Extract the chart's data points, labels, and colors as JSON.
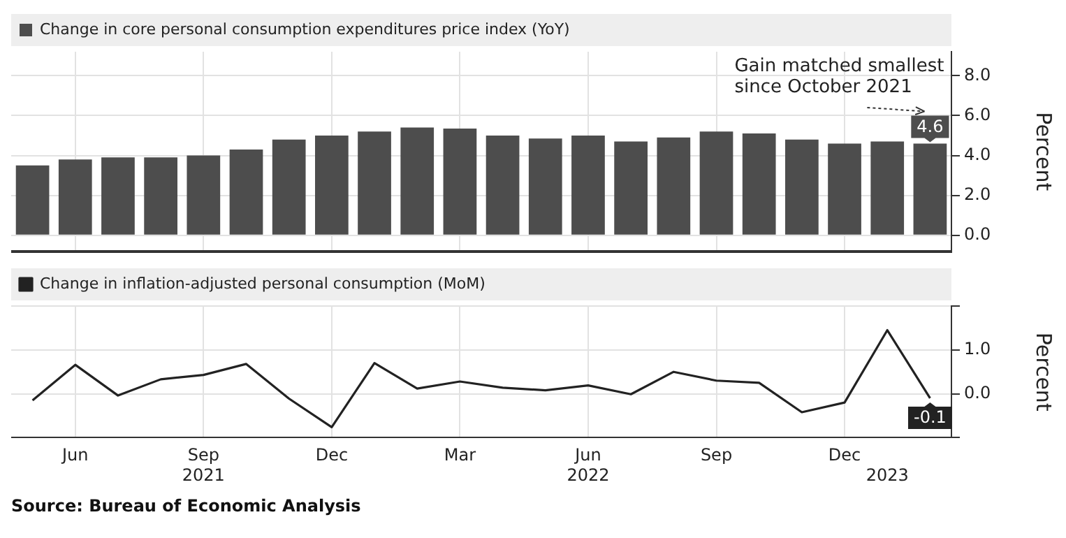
{
  "chart_data": [
    {
      "type": "bar",
      "categories": [
        null,
        null,
        null,
        null,
        null,
        null,
        null,
        null,
        null,
        null,
        null,
        null,
        null,
        null,
        null,
        null,
        null,
        null,
        null,
        null,
        null,
        null
      ],
      "series": [
        {
          "name": "Change in core personal consumption expenditures price index (YoY)",
          "color": "#4d4d4d",
          "values": [
            3.5,
            3.8,
            3.9,
            3.9,
            4.0,
            4.3,
            4.8,
            5.0,
            5.2,
            5.4,
            5.35,
            5.0,
            4.85,
            5.0,
            4.7,
            4.9,
            5.2,
            5.1,
            4.8,
            4.6,
            4.7,
            4.6
          ],
          "value_labels": [
            null,
            null,
            null,
            null,
            null,
            null,
            null,
            null,
            null,
            null,
            null,
            null,
            null,
            null,
            null,
            null,
            null,
            null,
            null,
            null,
            null,
            "4.6"
          ]
        }
      ],
      "ylim": [
        -0.8,
        9.2
      ],
      "yticks": [
        {
          "value": 0,
          "label": "0.0"
        },
        {
          "value": 2,
          "label": "2.0"
        },
        {
          "value": 4,
          "label": "4.0"
        },
        {
          "value": 6,
          "label": "6.0"
        },
        {
          "value": 8,
          "label": "8.0"
        }
      ],
      "ylabel": "Percent",
      "legend": "top left",
      "grid": true,
      "tick_labels": "y",
      "annotations": [
        "Gain matched smallest since October 2021"
      ]
    },
    {
      "type": "line",
      "categories": [
        null,
        "Jun",
        null,
        null,
        "Sep\n2021",
        null,
        null,
        "Dec",
        null,
        null,
        "Mar",
        null,
        null,
        "Jun\n2022",
        null,
        null,
        "Sep",
        null,
        null,
        "Dec",
        "\n2023",
        null
      ],
      "series": [
        {
          "name": "Change in inflation-adjusted personal consumption (MoM)",
          "color": "#222222",
          "values": [
            -0.15,
            0.66,
            -0.04,
            0.33,
            0.43,
            0.68,
            -0.11,
            -0.76,
            0.7,
            0.12,
            0.28,
            0.14,
            0.08,
            0.19,
            -0.01,
            0.5,
            0.3,
            0.25,
            -0.42,
            -0.2,
            1.45,
            -0.1
          ],
          "value_labels": [
            null,
            null,
            null,
            null,
            null,
            null,
            null,
            null,
            null,
            null,
            null,
            null,
            null,
            null,
            null,
            null,
            null,
            null,
            null,
            null,
            null,
            "-0.1"
          ]
        }
      ],
      "ylim": [
        -1,
        2
      ],
      "yticks": [
        {
          "value": -1,
          "label": null
        },
        {
          "value": 0,
          "label": "0.0"
        },
        {
          "value": 1,
          "label": "1.0"
        },
        {
          "value": 2,
          "label": null
        }
      ],
      "ylabel": "Percent",
      "legend": "top left",
      "grid": true,
      "marker": "none",
      "line_style": "solid",
      "annotations": [
        "Source: Bureau of Economic Analysis"
      ]
    }
  ]
}
